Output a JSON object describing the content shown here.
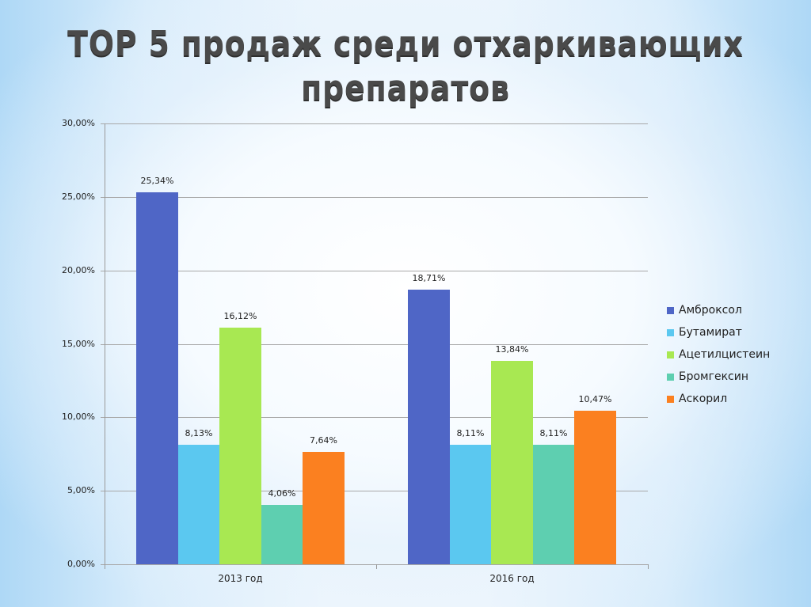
{
  "slide": {
    "title_line1": "TOP 5 продаж среди отхаркивающих",
    "title_line2": "препаратов"
  },
  "chart_data": {
    "type": "bar",
    "title": "TOP 5 продаж среди отхаркивающих препаратов",
    "categories": [
      "2013 год",
      "2016 год"
    ],
    "series": [
      {
        "name": "Амброксол",
        "color": "#4f66c6",
        "values": [
          25.34,
          18.71
        ],
        "labels": [
          "25,34%",
          "18,71%"
        ]
      },
      {
        "name": "Бутамират",
        "color": "#5bc8f0",
        "values": [
          8.13,
          8.11
        ],
        "labels": [
          "8,13%",
          "8,11%"
        ]
      },
      {
        "name": "Ацетилцистеин",
        "color": "#a8e852",
        "values": [
          16.12,
          13.84
        ],
        "labels": [
          "16,12%",
          "13,84%"
        ]
      },
      {
        "name": "Бромгексин",
        "color": "#5ecfb0",
        "values": [
          4.06,
          8.11
        ],
        "labels": [
          "4,06%",
          "8,11%"
        ]
      },
      {
        "name": "Аскорил",
        "color": "#fb8020",
        "values": [
          7.64,
          10.47
        ],
        "labels": [
          "7,64%",
          "10,47%"
        ]
      }
    ],
    "xlabel": "",
    "ylabel": "",
    "ylim": [
      0,
      30
    ],
    "yticks": [
      "0,00%",
      "5,00%",
      "10,00%",
      "15,00%",
      "20,00%",
      "25,00%",
      "30,00%"
    ],
    "grid": true,
    "legend_position": "right"
  }
}
